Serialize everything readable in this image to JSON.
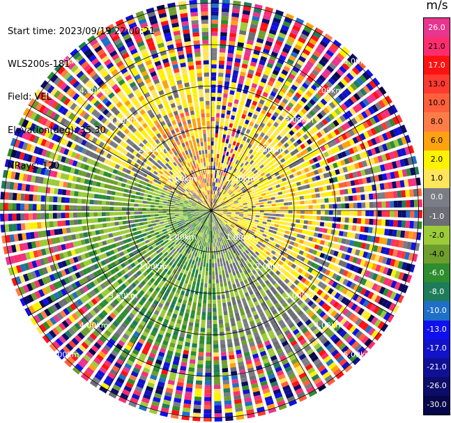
{
  "header": {
    "start_time": "Start time: 2023/09/19 22:00:21",
    "station": "WLS200s-181",
    "field": "Field: VEL",
    "elevation": "Elevation(deg): 35.30",
    "nrays": "NRays: 120"
  },
  "colorbar": {
    "unit": "m/s",
    "bins": [
      {
        "label": "26.0",
        "color": "#e8358f"
      },
      {
        "label": "21.0",
        "color": "#ff2d6e"
      },
      {
        "label": "17.0",
        "color": "#ff1212"
      },
      {
        "label": "13.0",
        "color": "#ff3a30"
      },
      {
        "label": "10.0",
        "color": "#ff5f3c"
      },
      {
        "label": "8.0",
        "color": "#ff7c48"
      },
      {
        "label": "6.0",
        "color": "#ffa20f"
      },
      {
        "label": "2.0",
        "color": "#fff200"
      },
      {
        "label": "1.0",
        "color": "#ffe55c"
      },
      {
        "label": "0.0",
        "color": "#7b7d86"
      },
      {
        "label": "-1.0",
        "color": "#6b6e74"
      },
      {
        "label": "-2.0",
        "color": "#9ccb3a"
      },
      {
        "label": "-4.0",
        "color": "#6e9f2e"
      },
      {
        "label": "-6.0",
        "color": "#2d8d2f"
      },
      {
        "label": "-8.0",
        "color": "#1f7c5a"
      },
      {
        "label": "-10.0",
        "color": "#1e6fc7"
      },
      {
        "label": "-13.0",
        "color": "#1010ee"
      },
      {
        "label": "-17.0",
        "color": "#1212c8"
      },
      {
        "label": "-21.0",
        "color": "#101094"
      },
      {
        "label": "-26.0",
        "color": "#0c0c6a"
      },
      {
        "label": "-30.0",
        "color": "#06064a"
      }
    ]
  },
  "chart_data": {
    "type": "heatmap",
    "projection": "polar (PPI)",
    "field": "VEL",
    "units": "m/s",
    "nrays": 120,
    "elevation_deg": 35.3,
    "range_rings_km": [
      1.0,
      2.0,
      3.0,
      4.0,
      5.0
    ],
    "ring_labels": [
      "1.00km",
      "2.00km",
      "3.00km",
      "4.00km",
      "5.00km"
    ],
    "azimuth_gridlines_deg": [
      0,
      30,
      60,
      90,
      120,
      150,
      180,
      210,
      240,
      270,
      300,
      330
    ],
    "pattern_summary": "Positive velocities (yellow/orange, +1 to +10 m/s) dominate the north-west and east sectors within ~3 km; negative velocities (green, -2 to -8 m/s) dominate the south and west sectors; beyond ~3-4 km the field becomes noisy with the full colour range.",
    "colorbar_levels": [
      26.0,
      21.0,
      17.0,
      13.0,
      10.0,
      8.0,
      6.0,
      2.0,
      1.0,
      0.0,
      -1.0,
      -2.0,
      -4.0,
      -6.0,
      -8.0,
      -10.0,
      -13.0,
      -17.0,
      -21.0,
      -26.0,
      -30.0
    ]
  }
}
